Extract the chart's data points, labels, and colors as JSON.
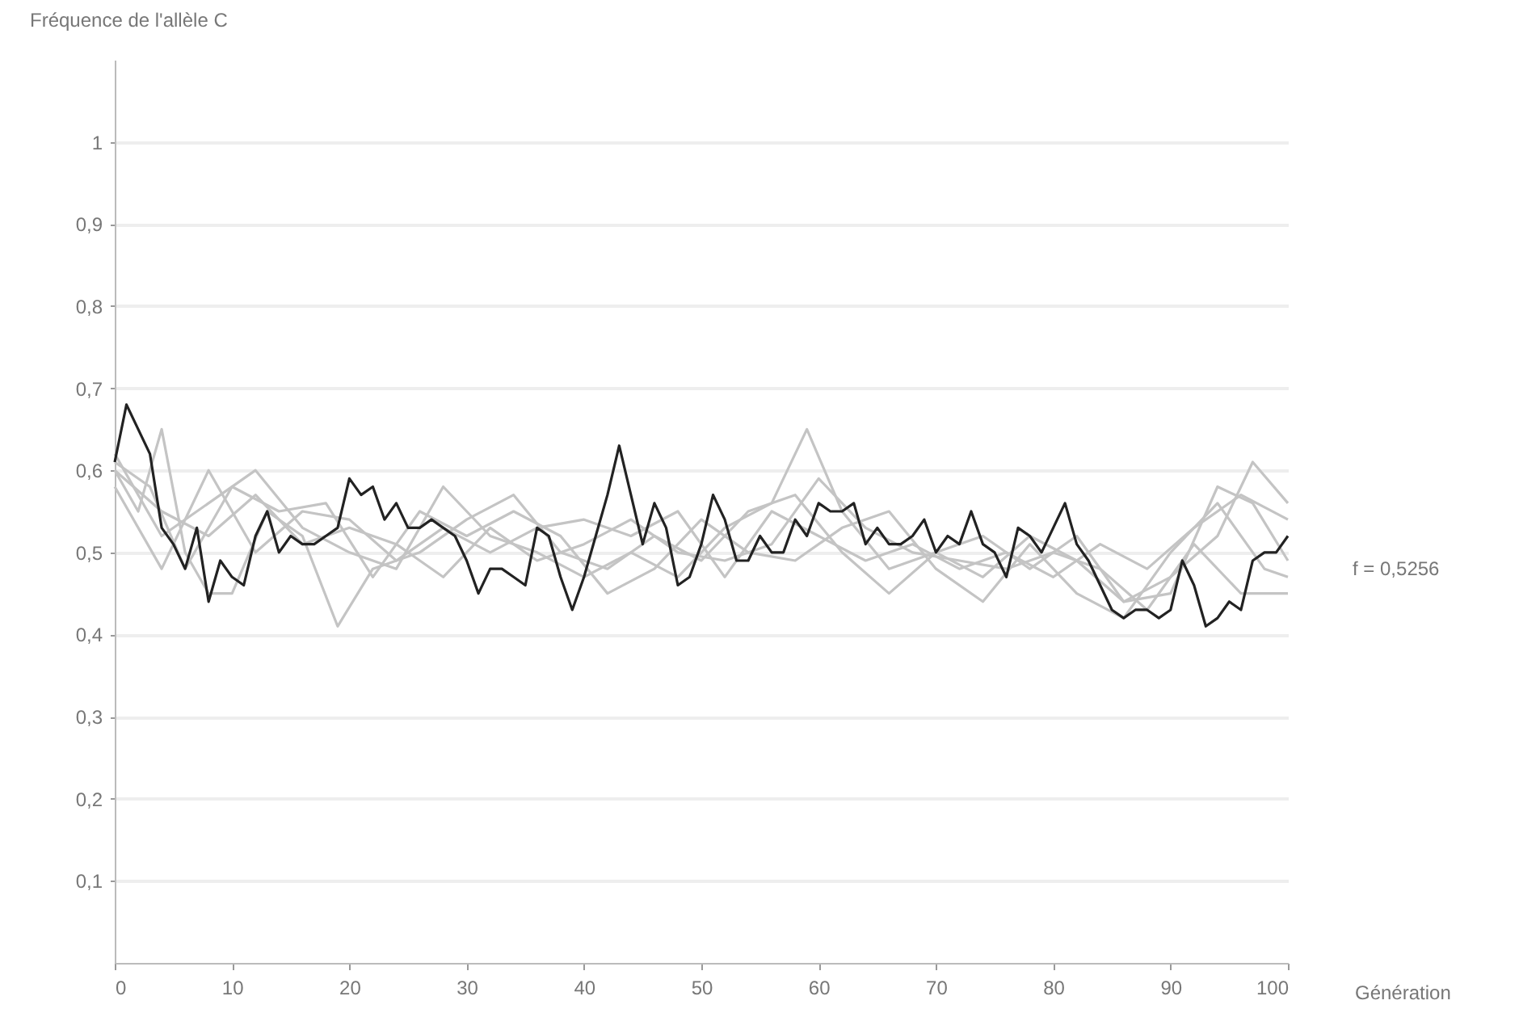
{
  "chart_data": {
    "type": "line",
    "ylabel": "Fréquence de l'allèle C",
    "xlabel": "Génération",
    "xlim": [
      0,
      100
    ],
    "xticks": [
      0,
      10,
      20,
      30,
      40,
      50,
      60,
      70,
      80,
      90,
      100
    ],
    "ylim": [
      0,
      1.1
    ],
    "yticks": [
      {
        "value": 0.1,
        "label": "0,1"
      },
      {
        "value": 0.2,
        "label": "0,2"
      },
      {
        "value": 0.3,
        "label": "0,3"
      },
      {
        "value": 0.4,
        "label": "0,4"
      },
      {
        "value": 0.5,
        "label": "0,5"
      },
      {
        "value": 0.6,
        "label": "0,6"
      },
      {
        "value": 0.7,
        "label": "0,7"
      },
      {
        "value": 0.8,
        "label": "0,8"
      },
      {
        "value": 0.9,
        "label": "0,9"
      },
      {
        "value": 1,
        "label": "1"
      }
    ],
    "grid": "y",
    "legend": false,
    "marker": "none",
    "line_style": "solid",
    "annotations": [
      "f = 0,5256"
    ],
    "series": [
      {
        "color": "#c4c4c4",
        "x": [
          0,
          4,
          8,
          12,
          16,
          20,
          24,
          28,
          32,
          36,
          40,
          44,
          48,
          52,
          56,
          59,
          62,
          66,
          70,
          74,
          78,
          82,
          86,
          90,
          94,
          97,
          100
        ],
        "values": [
          0.62,
          0.52,
          0.56,
          0.6,
          0.53,
          0.5,
          0.48,
          0.58,
          0.52,
          0.5,
          0.47,
          0.5,
          0.47,
          0.53,
          0.56,
          0.65,
          0.55,
          0.48,
          0.5,
          0.47,
          0.52,
          0.49,
          0.44,
          0.47,
          0.52,
          0.61,
          0.56
        ]
      },
      {
        "color": "#c4c4c4",
        "x": [
          0,
          2,
          4,
          6,
          8,
          10,
          13,
          16,
          19,
          22,
          26,
          30,
          34,
          38,
          42,
          46,
          50,
          54,
          58,
          62,
          66,
          70,
          74,
          78,
          82,
          86,
          90,
          94,
          97,
          100
        ],
        "values": [
          0.6,
          0.55,
          0.65,
          0.5,
          0.45,
          0.45,
          0.55,
          0.52,
          0.41,
          0.48,
          0.5,
          0.54,
          0.57,
          0.5,
          0.48,
          0.52,
          0.49,
          0.55,
          0.57,
          0.5,
          0.45,
          0.5,
          0.52,
          0.48,
          0.52,
          0.44,
          0.45,
          0.58,
          0.56,
          0.49
        ]
      },
      {
        "color": "#c4c4c4",
        "x": [
          0,
          3,
          6,
          10,
          14,
          18,
          22,
          26,
          30,
          34,
          38,
          42,
          46,
          50,
          54,
          58,
          62,
          66,
          70,
          74,
          78,
          82,
          86,
          90,
          94,
          98,
          100
        ],
        "values": [
          0.61,
          0.58,
          0.48,
          0.58,
          0.55,
          0.56,
          0.47,
          0.55,
          0.52,
          0.55,
          0.52,
          0.45,
          0.48,
          0.54,
          0.5,
          0.49,
          0.53,
          0.55,
          0.48,
          0.44,
          0.51,
          0.45,
          0.42,
          0.5,
          0.56,
          0.48,
          0.47
        ]
      },
      {
        "color": "#c4c4c4",
        "x": [
          0,
          4,
          8,
          12,
          16,
          20,
          24,
          28,
          32,
          36,
          40,
          44,
          48,
          52,
          56,
          60,
          64,
          68,
          72,
          76,
          80,
          84,
          88,
          92,
          96,
          100
        ],
        "values": [
          0.58,
          0.48,
          0.6,
          0.5,
          0.55,
          0.54,
          0.49,
          0.53,
          0.5,
          0.53,
          0.54,
          0.52,
          0.55,
          0.47,
          0.55,
          0.52,
          0.49,
          0.51,
          0.48,
          0.5,
          0.47,
          0.51,
          0.48,
          0.53,
          0.57,
          0.54
        ]
      },
      {
        "color": "#c4c4c4",
        "x": [
          0,
          4,
          8,
          12,
          16,
          20,
          24,
          28,
          32,
          36,
          40,
          44,
          48,
          52,
          56,
          60,
          64,
          68,
          72,
          76,
          80,
          84,
          88,
          92,
          96,
          100
        ],
        "values": [
          0.6,
          0.55,
          0.52,
          0.57,
          0.51,
          0.53,
          0.51,
          0.47,
          0.53,
          0.49,
          0.51,
          0.54,
          0.5,
          0.49,
          0.51,
          0.59,
          0.53,
          0.5,
          0.49,
          0.48,
          0.5,
          0.48,
          0.43,
          0.51,
          0.45,
          0.45
        ]
      },
      {
        "color": "#222222",
        "x": [
          0,
          1,
          2,
          3,
          4,
          5,
          6,
          7,
          8,
          9,
          10,
          11,
          12,
          13,
          14,
          15,
          16,
          17,
          18,
          19,
          20,
          21,
          22,
          23,
          24,
          25,
          26,
          27,
          28,
          29,
          30,
          31,
          32,
          33,
          34,
          35,
          36,
          37,
          38,
          39,
          40,
          41,
          42,
          43,
          44,
          45,
          46,
          47,
          48,
          49,
          50,
          51,
          52,
          53,
          54,
          55,
          56,
          57,
          58,
          59,
          60,
          61,
          62,
          63,
          64,
          65,
          66,
          67,
          68,
          69,
          70,
          71,
          72,
          73,
          74,
          75,
          76,
          77,
          78,
          79,
          80,
          81,
          82,
          83,
          84,
          85,
          86,
          87,
          88,
          89,
          90,
          91,
          92,
          93,
          94,
          95,
          96,
          97,
          98,
          99,
          100
        ],
        "values": [
          0.61,
          0.68,
          0.65,
          0.62,
          0.53,
          0.51,
          0.48,
          0.53,
          0.44,
          0.49,
          0.47,
          0.46,
          0.52,
          0.55,
          0.5,
          0.52,
          0.51,
          0.51,
          0.52,
          0.53,
          0.59,
          0.57,
          0.58,
          0.54,
          0.56,
          0.53,
          0.53,
          0.54,
          0.53,
          0.52,
          0.49,
          0.45,
          0.48,
          0.48,
          0.47,
          0.46,
          0.53,
          0.52,
          0.47,
          0.43,
          0.47,
          0.52,
          0.57,
          0.63,
          0.57,
          0.51,
          0.56,
          0.53,
          0.46,
          0.47,
          0.51,
          0.57,
          0.54,
          0.49,
          0.49,
          0.52,
          0.5,
          0.5,
          0.54,
          0.52,
          0.56,
          0.55,
          0.55,
          0.56,
          0.51,
          0.53,
          0.51,
          0.51,
          0.52,
          0.54,
          0.5,
          0.52,
          0.51,
          0.55,
          0.51,
          0.5,
          0.47,
          0.53,
          0.52,
          0.5,
          0.53,
          0.56,
          0.51,
          0.49,
          0.46,
          0.43,
          0.42,
          0.43,
          0.43,
          0.42,
          0.43,
          0.49,
          0.46,
          0.41,
          0.42,
          0.44,
          0.43,
          0.49,
          0.5,
          0.5,
          0.52
        ]
      }
    ]
  }
}
